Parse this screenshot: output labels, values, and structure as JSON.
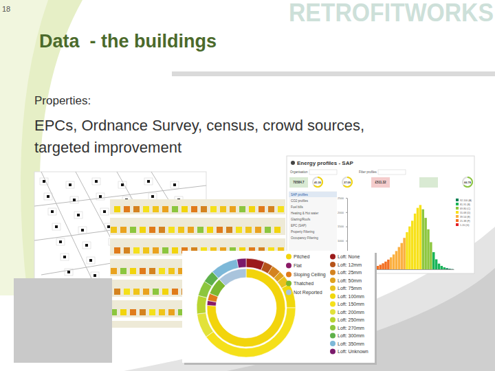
{
  "slide_number": "18",
  "logo": "RETROFITWORKS",
  "title": "Data  - the buildings",
  "body": {
    "heading": "Properties:",
    "lines": [
      "EPCs, Ordnance Survey, census, crowd sources,",
      "targeted improvement"
    ]
  },
  "dashboard": {
    "title": "Energy profiles - SAP",
    "fields": [
      "Organisation",
      "Filter profiles"
    ],
    "stat_boxes": [
      "70584.7",
      "£511.32"
    ],
    "stat_circles": [
      "41.30",
      "37.09",
      "66.78"
    ],
    "menu": [
      "SAP profiles",
      "CO2 profiles",
      "Fuel bills",
      "Heating & Hot water",
      "Glazing/Roofs",
      "EPC (SAP)",
      "Property Filtering",
      "Occupancy Filtering"
    ],
    "sap_bands": [
      {
        "label": "92-100 (A)",
        "color": "#008054"
      },
      {
        "label": "81-91 (B)",
        "color": "#19b459"
      },
      {
        "label": "69-80 (C)",
        "color": "#8dc63f"
      },
      {
        "label": "55-68 (D)",
        "color": "#f7e11a"
      },
      {
        "label": "39-54 (E)",
        "color": "#fbb040"
      },
      {
        "label": "21-38 (F)",
        "color": "#f36f21"
      },
      {
        "label": "1-20 (G)",
        "color": "#e41f26"
      }
    ]
  },
  "chart_data": [
    {
      "type": "histogram",
      "bins": [
        0,
        2.5,
        5,
        7.5,
        10,
        12.5,
        15,
        17.5,
        20,
        22.5,
        25,
        27.5,
        30,
        32.5,
        35,
        37.5,
        40,
        42.5,
        45,
        47.5,
        50,
        52.5,
        55,
        57.5,
        60,
        62.5,
        65,
        67.5,
        70,
        72.5,
        75,
        77.5,
        80,
        82.5,
        85,
        87.5,
        90,
        92.5,
        95,
        97.5,
        100
      ],
      "values": [
        5,
        5,
        8,
        10,
        15,
        20,
        25,
        35,
        50,
        70,
        90,
        120,
        160,
        210,
        270,
        340,
        420,
        520,
        640,
        780,
        920,
        1100,
        1300,
        1500,
        1700,
        1950,
        2150,
        2250,
        2100,
        1800,
        1400,
        950,
        600,
        350,
        200,
        120,
        70,
        40,
        20,
        10
      ],
      "colors": [
        "#e41f26",
        "#e41f26",
        "#e41f26",
        "#e41f26",
        "#e41f26",
        "#e41f26",
        "#e41f26",
        "#e41f26",
        "#f36f21",
        "#f36f21",
        "#f36f21",
        "#f36f21",
        "#f36f21",
        "#f36f21",
        "#f36f21",
        "#f36f21",
        "#fbb040",
        "#fbb040",
        "#fbb040",
        "#fbb040",
        "#fbb040",
        "#fbb040",
        "#f7e11a",
        "#f7e11a",
        "#f7e11a",
        "#f7e11a",
        "#f7e11a",
        "#f7e11a",
        "#8dc63f",
        "#8dc63f",
        "#8dc63f",
        "#8dc63f",
        "#19b459",
        "#19b459",
        "#19b459",
        "#19b459",
        "#19b459",
        "#008054",
        "#008054",
        "#008054"
      ],
      "xlim": [
        0,
        100
      ],
      "ylim": [
        0,
        2500
      ],
      "yticks": [
        0,
        500,
        1000,
        1500,
        2000,
        2500
      ],
      "tick_labels": "y",
      "grid": false
    },
    {
      "type": "pie",
      "categories": [
        "Pitched",
        "Flat",
        "Sloping Ceiling",
        "Thatched",
        "Not Reported"
      ],
      "values": [
        76,
        2,
        3,
        7,
        12
      ],
      "colors": [
        "#f2d40c",
        "#8a1a66",
        "#e07b1a",
        "#7cb82f",
        "#a9c4dc"
      ]
    },
    {
      "type": "pie",
      "categories": [
        "Loft: None",
        "Loft: 12mm",
        "Loft: 25mm",
        "Loft: 50mm",
        "Loft: 75mm",
        "Loft: 100mm",
        "Loft: 150mm",
        "Loft: 200mm",
        "Loft: 250mm",
        "Loft: 270mm",
        "Loft: 300mm",
        "Loft: 350mm",
        "Loft: Unknown"
      ],
      "values": [
        6,
        3,
        3,
        2,
        3,
        8,
        40,
        8,
        6,
        5,
        4,
        9,
        3
      ],
      "colors": [
        "#9b1b1b",
        "#b5531a",
        "#d4831f",
        "#e0a21e",
        "#e8c21e",
        "#f0d80c",
        "#f5e01a",
        "#e2e23a",
        "#b8d430",
        "#8cc63e",
        "#5eb04a",
        "#7db8d8",
        "#7a1a6b"
      ]
    }
  ]
}
